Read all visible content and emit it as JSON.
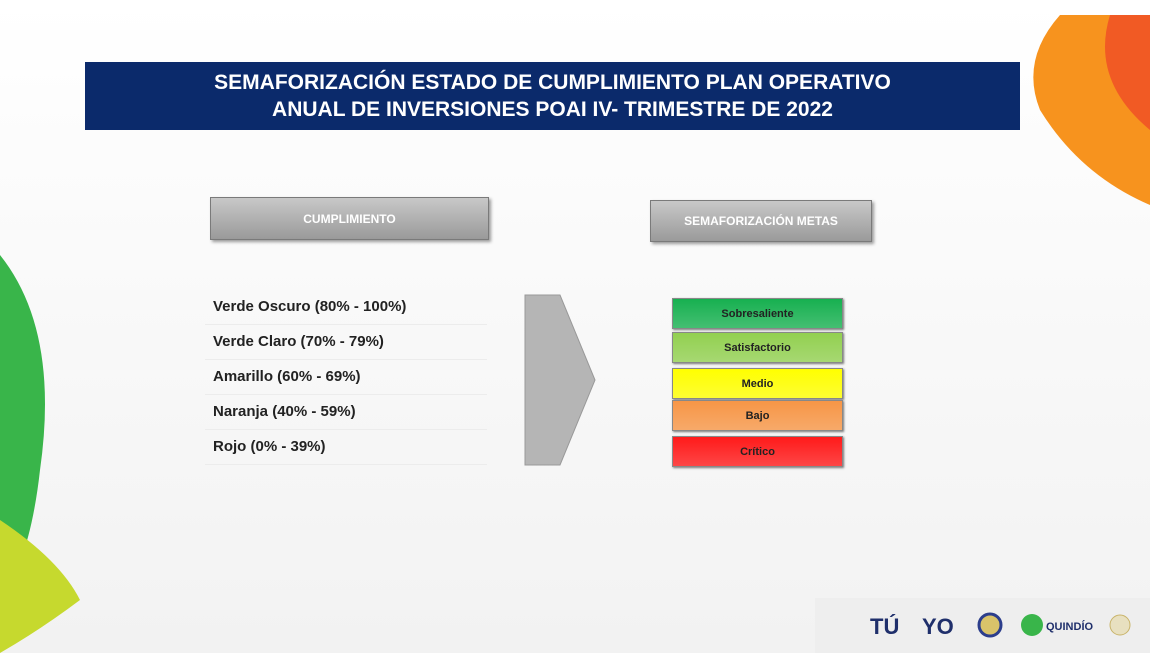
{
  "title": {
    "lines": [
      "SEMAFORIZACIÓN ESTADO DE CUMPLIMIENTO PLAN OPERATIVO",
      "ANUAL DE INVERSIONES  POAI  IV- TRIMESTRE DE 2022"
    ]
  },
  "left_header": "CUMPLIMIENTO",
  "right_header": "SEMAFORIZACIÓN METAS",
  "ranges": [
    "Verde Oscuro  (80%  - 100%)",
    "Verde Claro (70% - 79%)",
    "Amarillo (60%  - 69%)",
    "Naranja (40% - 59%)",
    "Rojo (0% - 39%)"
  ],
  "levels": [
    {
      "label": "Sobresaliente",
      "color": "#17b050"
    },
    {
      "label": "Satisfactorio",
      "color": "#92d050"
    },
    {
      "label": "Medio",
      "color": "#ffff00"
    },
    {
      "label": "Bajo",
      "color": "#f79646"
    },
    {
      "label": "Crítico",
      "color": "#ff1a1a"
    }
  ],
  "logos": [
    "TÚ",
    "YO",
    "QUINDÍO"
  ]
}
